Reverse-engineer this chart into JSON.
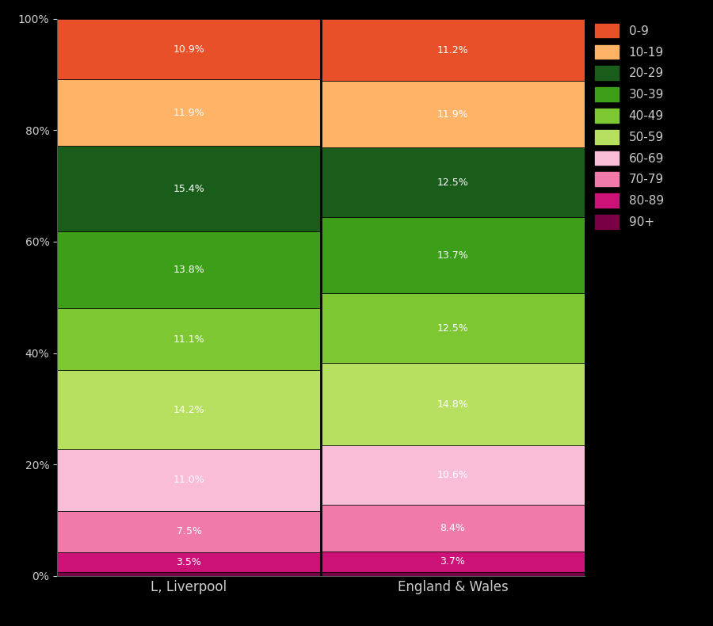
{
  "categories": [
    "L, Liverpool",
    "England & Wales"
  ],
  "colors": {
    "0-9": "#e8502a",
    "10-19": "#ffb366",
    "20-29": "#1a5c1a",
    "30-39": "#3d9e1a",
    "40-49": "#7dc832",
    "50-59": "#b8e060",
    "60-69": "#f9bdd8",
    "70-79": "#f07bab",
    "80-89": "#cc1177",
    "90+": "#7a0045"
  },
  "values": {
    "L, Liverpool": {
      "0-9": 10.9,
      "10-19": 11.9,
      "20-29": 15.4,
      "30-39": 13.8,
      "40-49": 11.1,
      "50-59": 14.2,
      "60-69": 11.0,
      "70-79": 7.5,
      "80-89": 3.5,
      "90+": 0.7
    },
    "England & Wales": {
      "0-9": 11.2,
      "10-19": 11.9,
      "20-29": 12.5,
      "30-39": 13.7,
      "40-49": 12.5,
      "50-59": 14.8,
      "60-69": 10.6,
      "70-79": 8.4,
      "80-89": 3.7,
      "90+": 0.7
    }
  },
  "background_color": "#000000",
  "text_color": "#cccccc",
  "legend_order": [
    "0-9",
    "10-19",
    "20-29",
    "30-39",
    "40-49",
    "50-59",
    "60-69",
    "70-79",
    "80-89",
    "90+"
  ],
  "stack_order": [
    "90+",
    "80-89",
    "70-79",
    "60-69",
    "50-59",
    "40-49",
    "30-39",
    "20-29",
    "10-19",
    "0-9"
  ]
}
